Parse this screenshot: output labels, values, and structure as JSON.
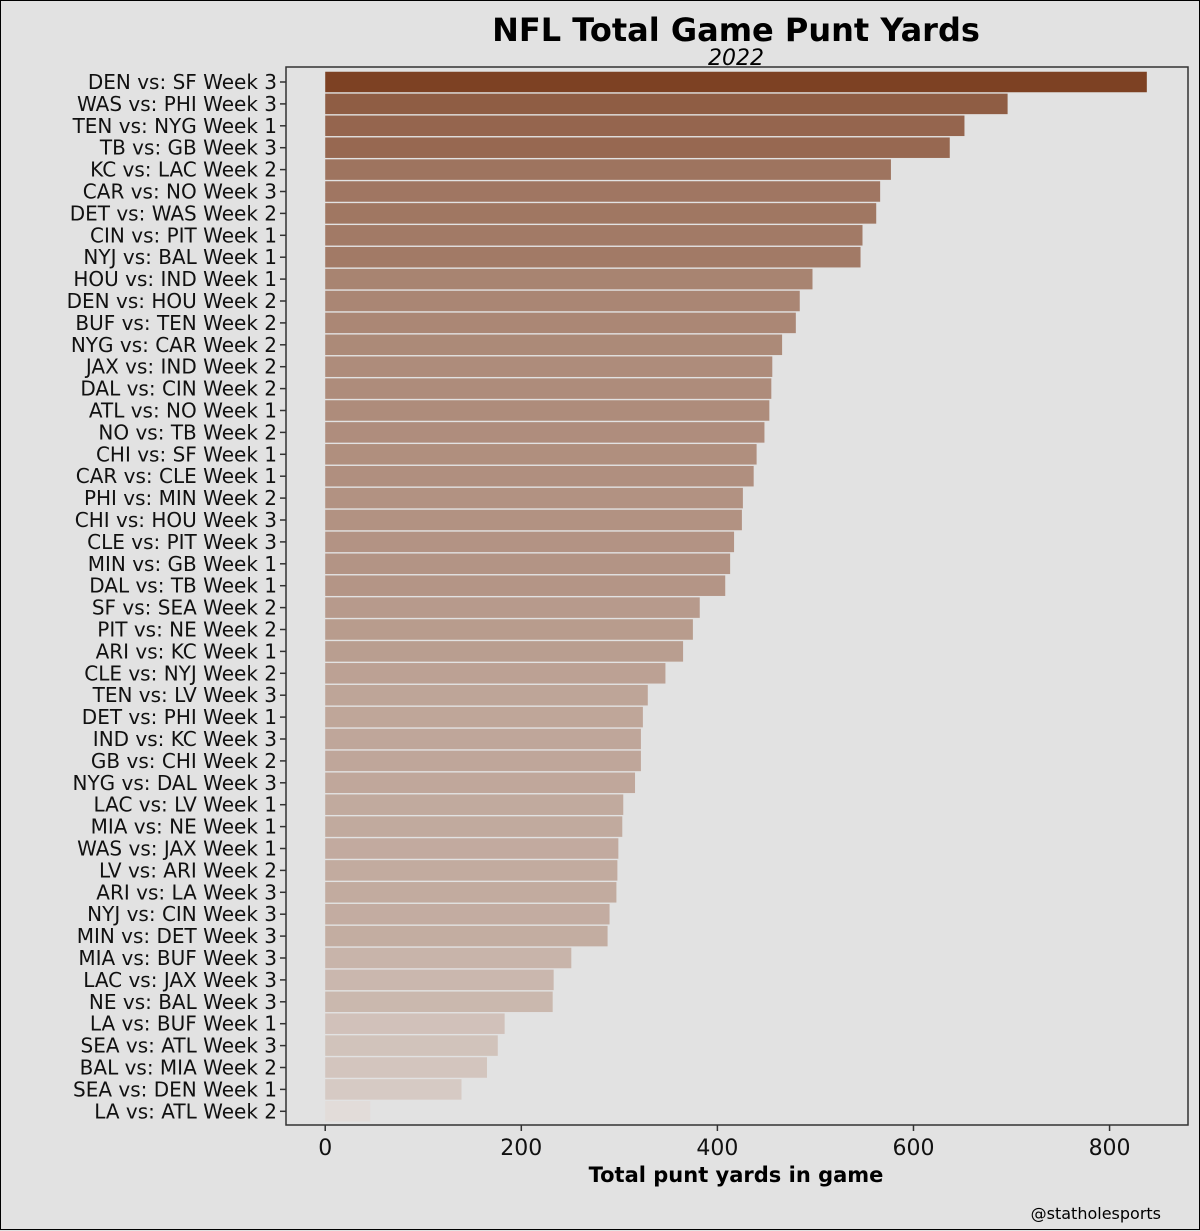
{
  "chart_data": {
    "type": "bar",
    "orientation": "horizontal",
    "title": "NFL Total Game Punt Yards",
    "subtitle": "2022",
    "xlabel": "Total punt yards in game",
    "ylabel": "",
    "credit": "@statholesports",
    "xlim": [
      -40,
      880
    ],
    "xticks": [
      0,
      200,
      400,
      600,
      800
    ],
    "grid": false,
    "color_light": "#e2dcd9",
    "color_dark": "#7d4123",
    "categories": [
      "DEN vs: SF Week 3",
      "WAS vs: PHI Week 3",
      "TEN vs: NYG Week 1",
      "TB vs: GB Week 3",
      "KC vs: LAC Week 2",
      "CAR vs: NO Week 3",
      "DET vs: WAS Week 2",
      "CIN vs: PIT Week 1",
      "NYJ vs: BAL Week 1",
      "HOU vs: IND Week 1",
      "DEN vs: HOU Week 2",
      "BUF vs: TEN Week 2",
      "NYG vs: CAR Week 2",
      "JAX vs: IND Week 2",
      "DAL vs: CIN Week 2",
      "ATL vs: NO Week 1",
      "NO vs: TB Week 2",
      "CHI vs: SF Week 1",
      "CAR vs: CLE Week 1",
      "PHI vs: MIN Week 2",
      "CHI vs: HOU Week 3",
      "CLE vs: PIT Week 3",
      "MIN vs: GB Week 1",
      "DAL vs: TB Week 1",
      "SF vs: SEA Week 2",
      "PIT vs: NE Week 2",
      "ARI vs: KC Week 1",
      "CLE vs: NYJ Week 2",
      "TEN vs: LV Week 3",
      "DET vs: PHI Week 1",
      "IND vs: KC Week 3",
      "GB vs: CHI Week 2",
      "NYG vs: DAL Week 3",
      "LAC vs: LV Week 1",
      "MIA vs: NE Week 1",
      "WAS vs: JAX Week 1",
      "LV vs: ARI Week 2",
      "ARI vs: LA Week 3",
      "NYJ vs: CIN Week 3",
      "MIN vs: DET Week 3",
      "MIA vs: BUF Week 3",
      "LAC vs: JAX Week 3",
      "NE vs: BAL Week 3",
      "LA vs: BUF Week 1",
      "SEA vs: ATL Week 3",
      "BAL vs: MIA Week 2",
      "SEA vs: DEN Week 1",
      "LA vs: ATL Week 2"
    ],
    "values": [
      838,
      696,
      652,
      637,
      577,
      566,
      562,
      548,
      546,
      497,
      484,
      480,
      466,
      456,
      455,
      453,
      448,
      440,
      437,
      426,
      425,
      417,
      413,
      408,
      382,
      375,
      365,
      347,
      329,
      324,
      322,
      322,
      316,
      304,
      303,
      299,
      298,
      297,
      290,
      288,
      251,
      233,
      232,
      183,
      176,
      165,
      139,
      46
    ]
  }
}
